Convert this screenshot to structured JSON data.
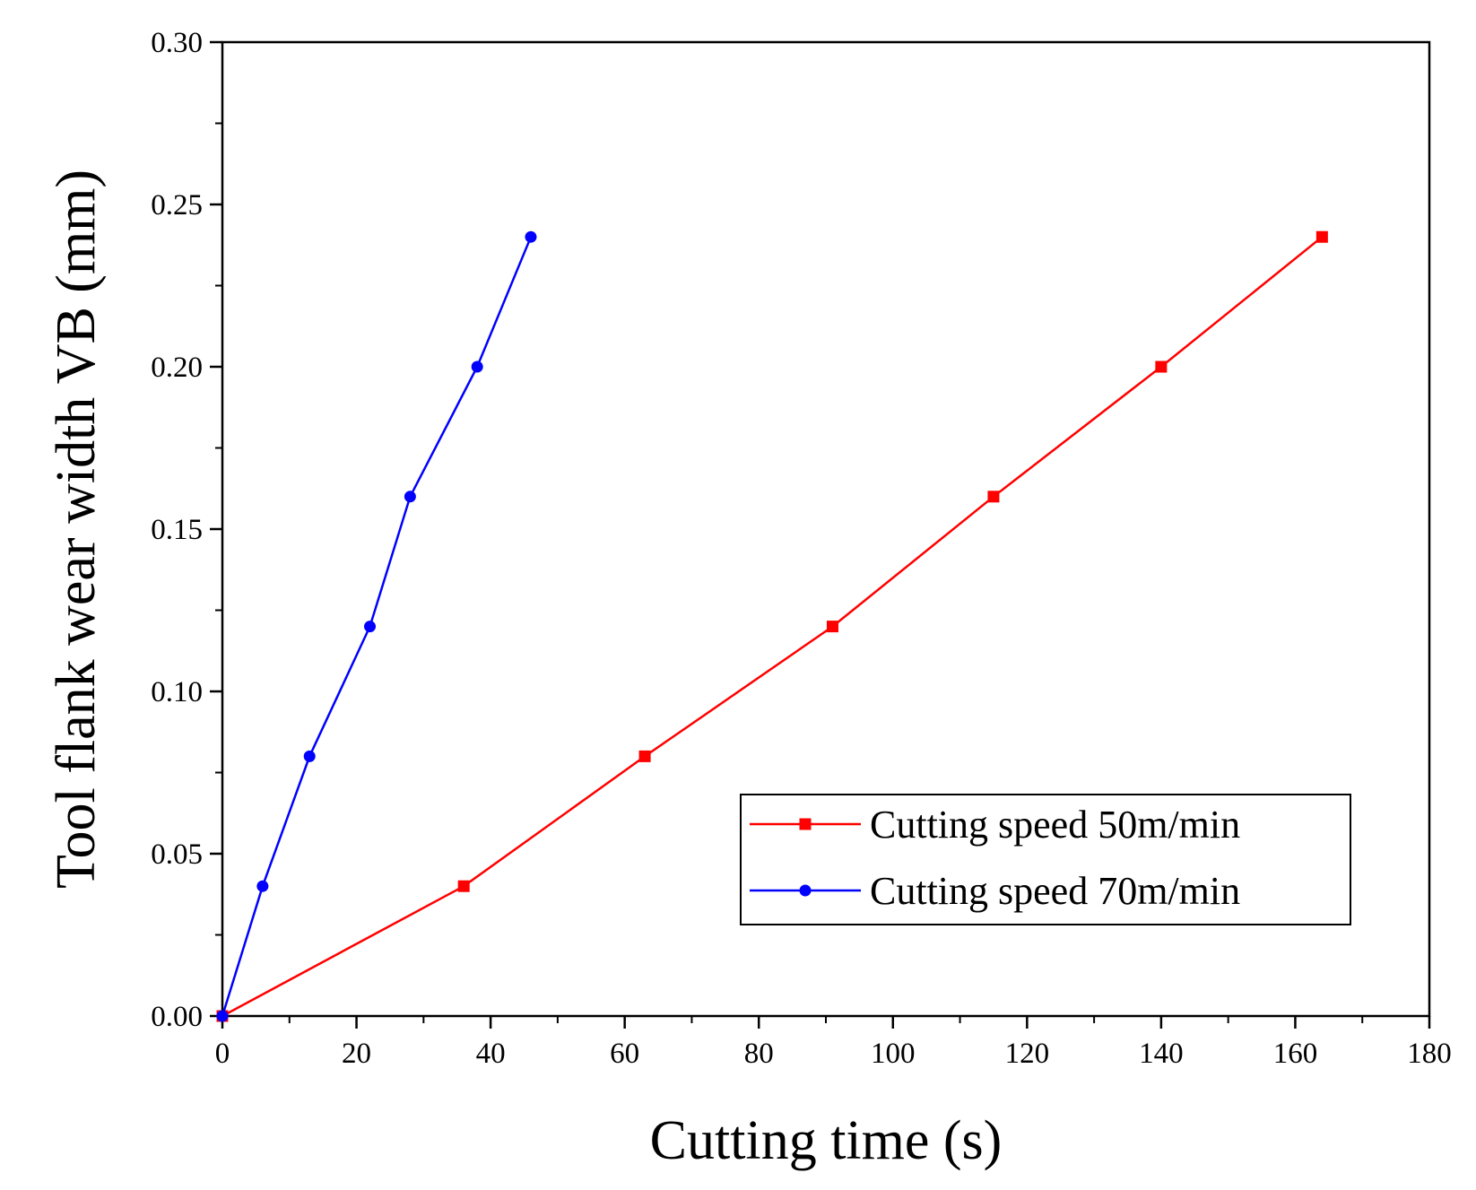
{
  "chart_data": {
    "type": "line",
    "title": "",
    "xlabel": "Cutting time (s)",
    "ylabel": "Tool flank wear width VB (mm)",
    "xlim": [
      0,
      180
    ],
    "ylim": [
      0,
      0.3
    ],
    "xticks": [
      "0",
      "20",
      "40",
      "60",
      "80",
      "100",
      "120",
      "140",
      "160",
      "180"
    ],
    "yticks": [
      "0.00",
      "0.05",
      "0.10",
      "0.15",
      "0.20",
      "0.25",
      "0.30"
    ],
    "grid": false,
    "legend_position": "bottom-right",
    "series": [
      {
        "name": "Cutting speed 50m/min",
        "color": "#ff0000",
        "marker": "square",
        "points": [
          [
            0,
            0.0
          ],
          [
            36,
            0.04
          ],
          [
            63,
            0.08
          ],
          [
            91,
            0.12
          ],
          [
            115,
            0.16
          ],
          [
            140,
            0.2
          ],
          [
            164,
            0.24
          ]
        ]
      },
      {
        "name": "Cutting speed 70m/min",
        "color": "#0000ff",
        "marker": "circle",
        "points": [
          [
            0,
            0.0
          ],
          [
            6,
            0.04
          ],
          [
            13,
            0.08
          ],
          [
            22,
            0.12
          ],
          [
            28,
            0.16
          ],
          [
            38,
            0.2
          ],
          [
            46,
            0.24
          ]
        ]
      }
    ]
  }
}
